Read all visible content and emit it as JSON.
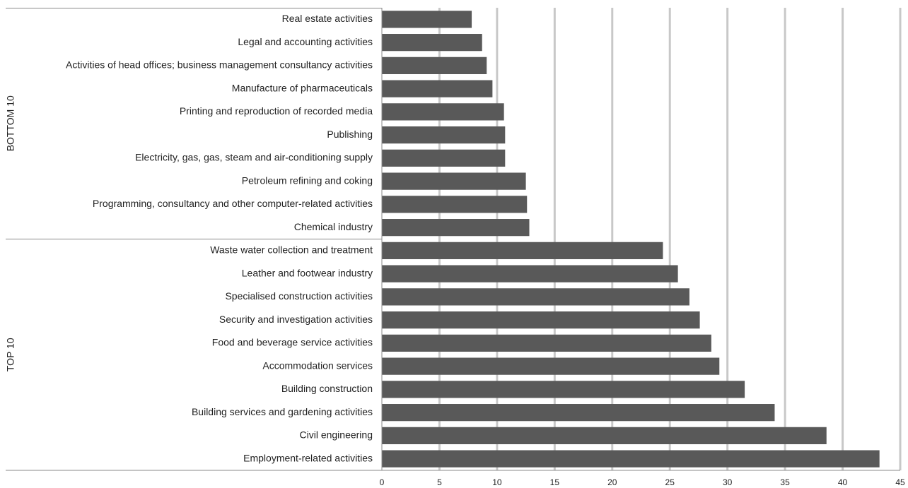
{
  "chart_data": {
    "type": "bar",
    "orientation": "horizontal",
    "color": "#595959",
    "grid": true,
    "groups": [
      {
        "name": "BOTTOM 10",
        "categories": [
          "Real estate activities",
          "Legal and accounting activities",
          "Activities of head offices; business management consultancy activities",
          "Manufacture of pharmaceuticals",
          "Printing and reproduction of recorded media",
          "Publishing",
          "Electricity, gas, gas, steam and air-conditioning supply",
          "Petroleum refining and coking",
          "Programming, consultancy and other computer-related activities",
          "Chemical industry"
        ],
        "values": [
          7.8,
          8.7,
          9.1,
          9.6,
          10.6,
          10.7,
          10.7,
          12.5,
          12.6,
          12.8
        ]
      },
      {
        "name": "TOP 10",
        "categories": [
          "Waste water collection and treatment",
          "Leather and footwear industry",
          "Specialised construction activities",
          "Security and investigation activities",
          "Food and beverage service activities",
          "Accommodation services",
          "Building construction",
          "Building services and gardening activities",
          "Civil engineering",
          "Employment-related activities"
        ],
        "values": [
          24.4,
          25.7,
          26.7,
          27.6,
          28.6,
          29.3,
          31.5,
          34.1,
          38.6,
          43.2
        ]
      }
    ],
    "xlim": [
      0,
      45
    ],
    "xticks": [
      0,
      5,
      10,
      15,
      20,
      25,
      30,
      35,
      40,
      45
    ]
  }
}
